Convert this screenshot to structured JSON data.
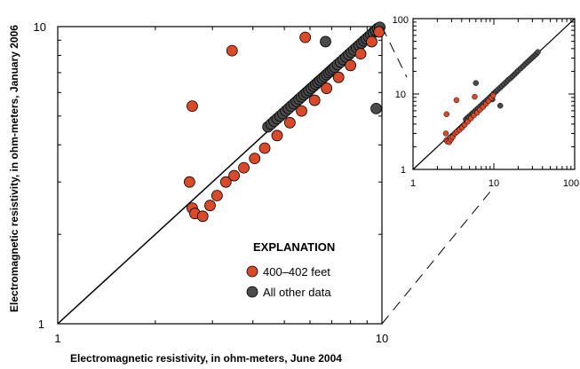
{
  "chart_data": [
    {
      "type": "scatter",
      "xlabel": "Electromagnetic resistivity, in ohm-meters, June 2004",
      "ylabel": "Electromagnetic resistivity, in ohm-meters, January 2006",
      "xscale": "log",
      "yscale": "log",
      "xlim": [
        1,
        10
      ],
      "ylim": [
        1,
        10
      ],
      "x_tick_labels": [
        "1",
        "10"
      ],
      "y_tick_labels": [
        "1",
        "10"
      ],
      "reference_line": "1:1 line",
      "legend": {
        "title": "EXPLANATION",
        "placement": "bottom-right",
        "entries": [
          "400–402 feet",
          "All other data"
        ]
      },
      "series": [
        {
          "name": "400–402 feet",
          "color": "#d94a2b",
          "x": [
            2.55,
            2.6,
            2.65,
            2.8,
            2.95,
            3.1,
            3.3,
            3.5,
            3.75,
            4.05,
            4.35,
            4.75,
            5.2,
            5.65,
            6.2,
            6.75,
            7.35,
            8.0,
            8.6,
            9.3,
            9.8,
            2.6,
            3.45,
            5.8
          ],
          "y": [
            3.0,
            2.45,
            2.35,
            2.3,
            2.5,
            2.7,
            3.0,
            3.15,
            3.35,
            3.6,
            3.9,
            4.3,
            4.75,
            5.2,
            5.65,
            6.2,
            6.75,
            7.4,
            8.1,
            8.9,
            9.6,
            5.4,
            8.3,
            9.2
          ]
        },
        {
          "name": "All other data",
          "color": "#4a4a4a",
          "x": [
            4.45,
            4.55,
            4.65,
            4.75,
            4.85,
            4.95,
            5.05,
            5.15,
            5.25,
            5.35,
            5.45,
            5.55,
            5.65,
            5.75,
            5.85,
            5.95,
            6.05,
            6.15,
            6.25,
            6.35,
            6.45,
            6.55,
            6.65,
            6.75,
            6.85,
            6.95,
            7.05,
            7.15,
            7.3,
            7.45,
            7.6,
            7.75,
            7.9,
            8.05,
            8.2,
            8.35,
            8.5,
            8.65,
            8.8,
            8.95,
            9.1,
            9.25,
            9.4,
            9.55,
            9.7,
            9.85,
            6.7,
            9.6
          ],
          "y": [
            4.6,
            4.7,
            4.8,
            4.9,
            5.0,
            5.1,
            5.2,
            5.3,
            5.4,
            5.5,
            5.6,
            5.7,
            5.8,
            5.9,
            6.0,
            6.1,
            6.2,
            6.3,
            6.4,
            6.5,
            6.6,
            6.7,
            6.8,
            6.9,
            7.0,
            7.1,
            7.2,
            7.3,
            7.45,
            7.6,
            7.75,
            7.9,
            8.05,
            8.2,
            8.35,
            8.5,
            8.65,
            8.8,
            8.95,
            9.1,
            9.25,
            9.4,
            9.55,
            9.7,
            9.85,
            9.95,
            8.9,
            5.3
          ]
        }
      ]
    },
    {
      "type": "scatter",
      "xscale": "log",
      "yscale": "log",
      "xlim": [
        1,
        100
      ],
      "ylim": [
        1,
        100
      ],
      "x_tick_labels": [
        "1",
        "10",
        "100"
      ],
      "y_tick_labels": [
        "1",
        "10",
        "100"
      ],
      "reference_line": "1:1 line",
      "series": [
        {
          "color": "#d94a2b",
          "x": [
            2.55,
            2.6,
            2.65,
            2.8,
            2.95,
            3.1,
            3.3,
            3.5,
            3.75,
            4.05,
            4.35,
            4.75,
            5.2,
            5.65,
            6.2,
            6.75,
            7.35,
            8.0,
            8.6,
            9.3,
            9.8,
            2.6,
            3.45,
            5.8
          ],
          "y": [
            3.0,
            2.45,
            2.35,
            2.3,
            2.5,
            2.7,
            3.0,
            3.15,
            3.35,
            3.6,
            3.9,
            4.3,
            4.75,
            5.2,
            5.65,
            6.2,
            6.75,
            7.4,
            8.1,
            8.9,
            9.6,
            5.4,
            8.3,
            9.2
          ]
        },
        {
          "color": "#4a4a4a",
          "x": [
            4.5,
            4.7,
            4.9,
            5.1,
            5.3,
            5.5,
            5.8,
            6.1,
            6.4,
            6.8,
            7.2,
            7.6,
            8.0,
            8.5,
            9.0,
            9.5,
            10.0,
            10.6,
            11.2,
            11.9,
            12.6,
            13.4,
            14.2,
            15.0,
            16.0,
            17.0,
            18.0,
            19.0,
            20.0,
            21.5,
            23.0,
            24.5,
            26.0,
            27.5,
            29.0,
            30.5,
            32.0,
            33.5,
            35.0,
            6.0,
            9.6,
            12.0
          ],
          "y": [
            4.6,
            4.8,
            5.0,
            5.2,
            5.4,
            5.6,
            5.9,
            6.2,
            6.5,
            6.9,
            7.3,
            7.7,
            8.1,
            8.6,
            9.1,
            9.6,
            10.2,
            10.8,
            11.4,
            12.1,
            12.8,
            13.6,
            14.4,
            15.3,
            16.2,
            17.2,
            18.2,
            19.3,
            20.4,
            21.9,
            23.4,
            25.0,
            26.5,
            28.0,
            29.5,
            31.0,
            32.5,
            34.0,
            36.0,
            14.0,
            8.5,
            7.0
          ]
        }
      ]
    }
  ]
}
